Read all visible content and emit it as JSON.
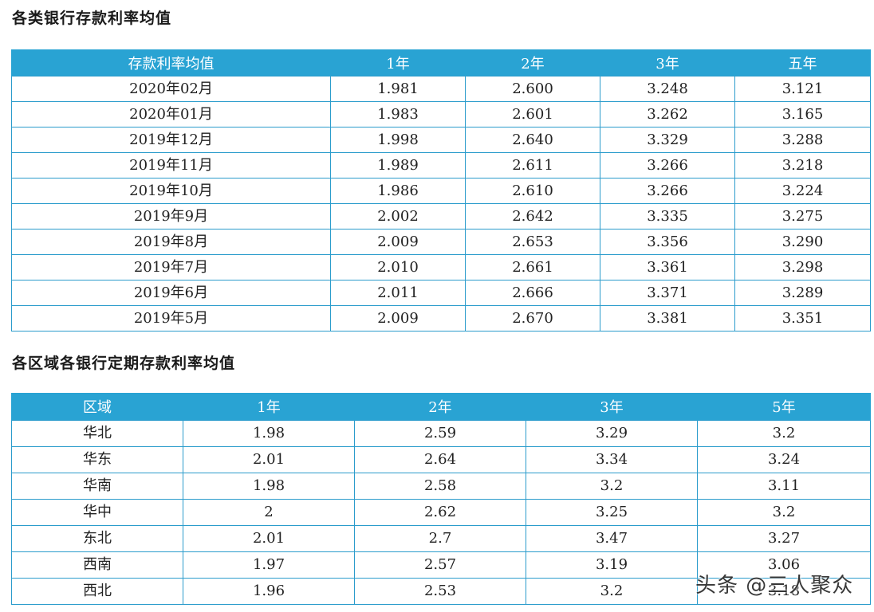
{
  "table1": {
    "title": "各类银行存款利率均值",
    "headers": [
      "存款利率均值",
      "1年",
      "2年",
      "3年",
      "五年"
    ],
    "rows": [
      [
        "2020年02月",
        "1.981",
        "2.600",
        "3.248",
        "3.121"
      ],
      [
        "2020年01月",
        "1.983",
        "2.601",
        "3.262",
        "3.165"
      ],
      [
        "2019年12月",
        "1.998",
        "2.640",
        "3.329",
        "3.288"
      ],
      [
        "2019年11月",
        "1.989",
        "2.611",
        "3.266",
        "3.218"
      ],
      [
        "2019年10月",
        "1.986",
        "2.610",
        "3.266",
        "3.224"
      ],
      [
        "2019年9月",
        "2.002",
        "2.642",
        "3.335",
        "3.275"
      ],
      [
        "2019年8月",
        "2.009",
        "2.653",
        "3.356",
        "3.290"
      ],
      [
        "2019年7月",
        "2.010",
        "2.661",
        "3.361",
        "3.298"
      ],
      [
        "2019年6月",
        "2.011",
        "2.666",
        "3.371",
        "3.289"
      ],
      [
        "2019年5月",
        "2.009",
        "2.670",
        "3.381",
        "3.351"
      ]
    ]
  },
  "table2": {
    "title": "各区域各银行定期存款利率均值",
    "headers": [
      "区域",
      "1年",
      "2年",
      "3年",
      "5年"
    ],
    "rows": [
      [
        "华北",
        "1.98",
        "2.59",
        "3.29",
        "3.2"
      ],
      [
        "华东",
        "2.01",
        "2.64",
        "3.34",
        "3.24"
      ],
      [
        "华南",
        "1.98",
        "2.58",
        "3.2",
        "3.11"
      ],
      [
        "华中",
        "2",
        "2.62",
        "3.25",
        "3.2"
      ],
      [
        "东北",
        "2.01",
        "2.7",
        "3.47",
        "3.27"
      ],
      [
        "西南",
        "1.97",
        "2.57",
        "3.19",
        "3.06"
      ],
      [
        "西北",
        "1.96",
        "2.53",
        "3.2",
        "3.18"
      ]
    ]
  },
  "watermark": "头条 @三人聚众"
}
